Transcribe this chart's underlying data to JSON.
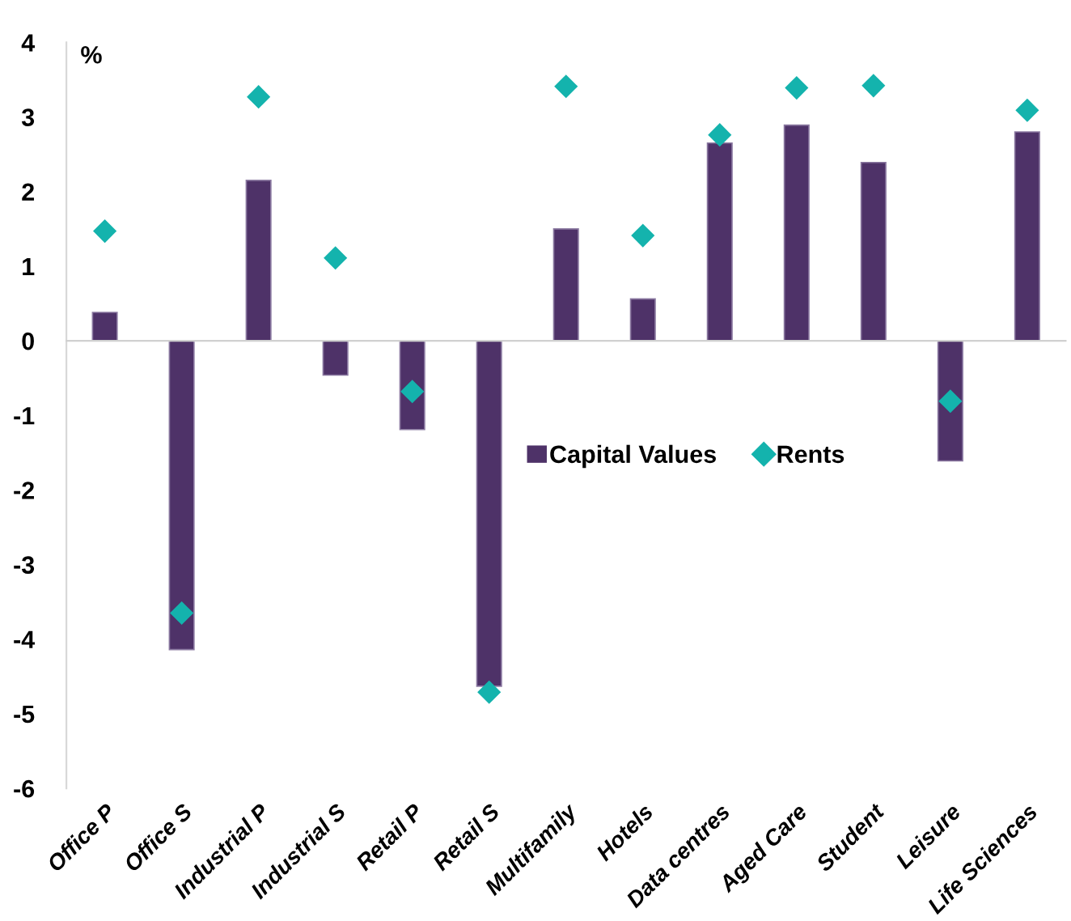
{
  "chart_data": {
    "type": "bar",
    "ylabel": "%",
    "categories": [
      "Office P",
      "Office S",
      "Industrial P",
      "Industrial S",
      "Retail P",
      "Retail S",
      "Multifamily",
      "Hotels",
      "Data centres",
      "Aged Care",
      "Student",
      "Leisure",
      "Life Sciences"
    ],
    "series": [
      {
        "name": "Capital Values",
        "color": "#4e3268",
        "values": [
          0.38,
          -4.14,
          2.15,
          -0.46,
          -1.19,
          -4.63,
          1.5,
          0.56,
          2.65,
          2.89,
          2.39,
          -1.61,
          2.8
        ]
      },
      {
        "name": "Rents",
        "type": "scatter",
        "color": "#14b3ad",
        "marker": "diamond",
        "values": [
          1.47,
          -3.65,
          3.27,
          1.11,
          -0.68,
          -4.71,
          3.41,
          1.41,
          2.76,
          3.39,
          3.42,
          -0.81,
          3.09
        ]
      }
    ],
    "ylim": [
      -6,
      4
    ],
    "yticks": [
      -6,
      -5,
      -4,
      -3,
      -2,
      -1,
      0,
      1,
      2,
      3,
      4
    ],
    "legend": "center"
  }
}
